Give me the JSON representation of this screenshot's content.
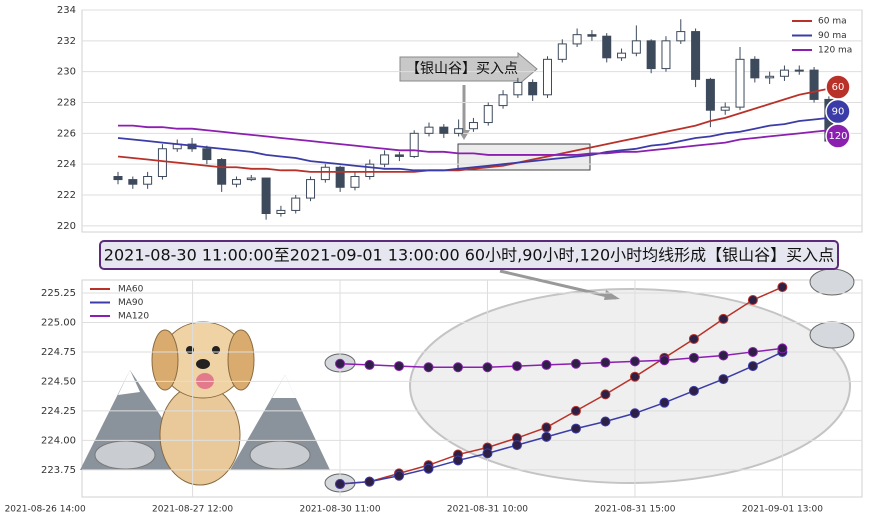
{
  "chart_data": [
    {
      "type": "candlestick",
      "open": [
        223.2,
        223.0,
        222.7,
        223.2,
        225.0,
        225.3,
        225.0,
        224.3,
        222.7,
        223.0,
        223.1,
        220.8,
        221.0,
        221.8,
        223.0,
        223.8,
        222.5,
        223.2,
        224.0,
        224.6,
        224.5,
        226.0,
        226.4,
        226.0,
        226.3,
        226.7,
        227.8,
        228.5,
        229.3,
        228.5,
        230.8,
        231.8,
        232.4,
        232.3,
        230.9,
        231.2,
        232.0,
        230.2,
        232.0,
        232.6,
        229.5,
        227.5,
        227.7,
        230.8,
        229.6,
        229.7,
        230.1,
        230.1,
        228.2
      ],
      "close": [
        223.0,
        222.7,
        223.2,
        225.0,
        225.3,
        225.0,
        224.3,
        222.7,
        223.0,
        223.1,
        220.8,
        221.0,
        221.8,
        223.0,
        223.8,
        222.5,
        223.2,
        224.0,
        224.6,
        224.5,
        226.0,
        226.4,
        226.0,
        226.3,
        226.7,
        227.8,
        228.5,
        229.3,
        228.5,
        230.8,
        231.8,
        232.4,
        232.3,
        230.9,
        231.2,
        232.0,
        230.2,
        232.0,
        232.6,
        229.5,
        227.5,
        227.7,
        230.8,
        229.6,
        229.7,
        230.1,
        230.1,
        228.2,
        225.5
      ],
      "high": [
        223.5,
        223.2,
        223.5,
        225.3,
        225.6,
        225.7,
        225.2,
        224.4,
        223.2,
        223.3,
        223.1,
        221.3,
        222.0,
        223.2,
        224.0,
        223.9,
        223.5,
        224.3,
        224.9,
        224.8,
        226.2,
        226.7,
        226.6,
        226.9,
        227.0,
        228.0,
        228.8,
        229.6,
        229.5,
        231.0,
        232.1,
        232.8,
        232.7,
        232.5,
        231.5,
        233.0,
        232.1,
        232.3,
        233.4,
        232.8,
        229.6,
        228.0,
        231.6,
        231.0,
        230.0,
        230.4,
        230.4,
        230.3,
        228.4
      ],
      "low": [
        222.7,
        222.4,
        222.4,
        223.0,
        224.8,
        224.8,
        224.0,
        222.2,
        222.5,
        222.9,
        220.4,
        220.6,
        220.8,
        221.6,
        222.8,
        222.2,
        222.3,
        223.0,
        223.8,
        224.2,
        224.4,
        225.8,
        225.7,
        225.8,
        226.1,
        226.5,
        227.6,
        228.3,
        228.1,
        228.3,
        230.6,
        231.6,
        232.0,
        230.6,
        230.7,
        231.0,
        229.9,
        230.0,
        231.8,
        229.0,
        226.4,
        227.2,
        227.5,
        229.3,
        229.2,
        229.4,
        229.8,
        228.0,
        225.3
      ],
      "series": [
        {
          "name": "60 ma",
          "color": "#b8322a",
          "end_label": "60",
          "values": [
            224.5,
            224.4,
            224.3,
            224.2,
            224.1,
            224.0,
            223.9,
            223.8,
            223.8,
            223.7,
            223.7,
            223.6,
            223.6,
            223.5,
            223.5,
            223.5,
            223.5,
            223.5,
            223.5,
            223.5,
            223.5,
            223.6,
            223.6,
            223.6,
            223.7,
            223.8,
            223.9,
            224.1,
            224.3,
            224.5,
            224.7,
            224.9,
            225.1,
            225.3,
            225.5,
            225.7,
            225.9,
            226.1,
            226.3,
            226.5,
            226.8,
            227.0,
            227.3,
            227.6,
            227.9,
            228.2,
            228.5,
            228.7,
            228.9
          ]
        },
        {
          "name": "90 ma",
          "color": "#3b3ca8",
          "end_label": "90",
          "values": [
            225.7,
            225.6,
            225.5,
            225.4,
            225.3,
            225.2,
            225.1,
            225.0,
            224.9,
            224.8,
            224.6,
            224.5,
            224.4,
            224.2,
            224.1,
            224.0,
            223.9,
            223.8,
            223.7,
            223.7,
            223.6,
            223.6,
            223.6,
            223.7,
            223.8,
            223.9,
            224.0,
            224.1,
            224.2,
            224.3,
            224.4,
            224.5,
            224.6,
            224.8,
            224.9,
            225.0,
            225.2,
            225.3,
            225.5,
            225.7,
            225.8,
            226.0,
            226.1,
            226.3,
            226.5,
            226.6,
            226.8,
            226.9,
            227.0
          ]
        },
        {
          "name": "120 ma",
          "color": "#8a1fb0",
          "end_label": "120",
          "values": [
            226.5,
            226.5,
            226.4,
            226.4,
            226.3,
            226.3,
            226.2,
            226.1,
            226.0,
            225.9,
            225.8,
            225.7,
            225.6,
            225.5,
            225.4,
            225.3,
            225.2,
            225.1,
            225.0,
            224.9,
            224.9,
            224.8,
            224.8,
            224.7,
            224.7,
            224.6,
            224.6,
            224.6,
            224.6,
            224.6,
            224.6,
            224.6,
            224.7,
            224.7,
            224.8,
            224.8,
            224.9,
            225.0,
            225.1,
            225.2,
            225.3,
            225.4,
            225.6,
            225.7,
            225.8,
            225.9,
            226.0,
            226.1,
            226.2
          ]
        }
      ],
      "ylim": [
        219.6,
        234
      ],
      "yticks": [
        220,
        222,
        224,
        226,
        228,
        230,
        232,
        234
      ],
      "grid": true,
      "annotation": "【银山谷】买入点"
    },
    {
      "type": "line",
      "title": "2021-08-30 11:00:00至2021-09-01 13:00:00 60小时,90小时,120小时均线形成【银山谷】买入点",
      "x": [
        10,
        11,
        12,
        13,
        14,
        15,
        16,
        17,
        18,
        19,
        20,
        21,
        22,
        23,
        24,
        25
      ],
      "series": [
        {
          "name": "MA60",
          "color": "#b8322a",
          "values": [
            223.63,
            223.65,
            223.72,
            223.79,
            223.88,
            223.94,
            224.02,
            224.11,
            224.25,
            224.39,
            224.54,
            224.7,
            224.86,
            225.03,
            225.19,
            225.3
          ]
        },
        {
          "name": "MA90",
          "color": "#3b3ca8",
          "values": [
            223.63,
            223.65,
            223.7,
            223.76,
            223.83,
            223.89,
            223.96,
            224.03,
            224.1,
            224.16,
            224.23,
            224.32,
            224.42,
            224.52,
            224.63,
            224.75
          ]
        },
        {
          "name": "MA120",
          "color": "#8a1fb0",
          "values": [
            224.65,
            224.64,
            224.63,
            224.62,
            224.62,
            224.62,
            224.63,
            224.64,
            224.65,
            224.66,
            224.67,
            224.68,
            224.7,
            224.72,
            224.75,
            224.78
          ]
        }
      ],
      "xlim": [
        1.25,
        27.7
      ],
      "xticks": [
        {
          "value": 0,
          "label": "2021-08-26 14:00"
        },
        {
          "value": 5,
          "label": "2021-08-27 12:00"
        },
        {
          "value": 10,
          "label": "2021-08-30 11:00"
        },
        {
          "value": 15,
          "label": "2021-08-31 10:00"
        },
        {
          "value": 20,
          "label": "2021-08-31 15:00"
        },
        {
          "value": 25,
          "label": "2021-09-01 13:00"
        }
      ],
      "ylim": [
        223.52,
        225.36
      ],
      "yticks": [
        223.75,
        {
          "value": 224,
          "label": "224.00"
        },
        224.25,
        {
          "value": 224.5,
          "label": "224.50"
        },
        224.75,
        {
          "value": 225,
          "label": "225.00"
        },
        225.25
      ],
      "grid": true
    }
  ]
}
